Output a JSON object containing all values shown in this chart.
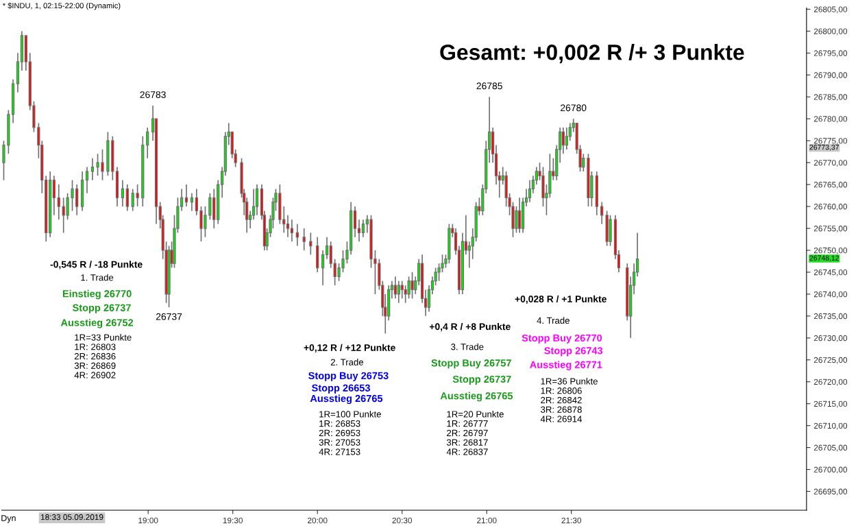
{
  "chart_data": {
    "type": "candlestick",
    "title": "* $INDU, 1, 02:15-22:00 (Dynamic)",
    "subtitle": "Gesamt: +0,002 R /+ 3 Punkte",
    "x": [
      18.147,
      18.175,
      18.202,
      18.23,
      18.254,
      18.278,
      18.302,
      18.325,
      18.353,
      18.373,
      18.397,
      18.421,
      18.444,
      18.472,
      18.5,
      18.524,
      18.552,
      18.579,
      18.611,
      18.639,
      18.671,
      18.702,
      18.73,
      18.762,
      18.79,
      18.817,
      18.849,
      18.877,
      18.909,
      18.937,
      18.968,
      18.996,
      19.028,
      19.048,
      19.071,
      19.087,
      19.107,
      19.123,
      19.139,
      19.155,
      19.175,
      19.198,
      19.226,
      19.258,
      19.286,
      19.313,
      19.337,
      19.365,
      19.389,
      19.413,
      19.437,
      19.456,
      19.476,
      19.496,
      19.516,
      19.552,
      19.567,
      19.583,
      19.603,
      19.623,
      19.643,
      19.671,
      19.687,
      19.702,
      19.722,
      19.738,
      19.754,
      19.778,
      19.802,
      19.825,
      19.849,
      19.881,
      19.921,
      19.96,
      20.0,
      20.032,
      20.056,
      20.079,
      20.103,
      20.127,
      20.151,
      20.175,
      20.198,
      20.222,
      20.246,
      20.27,
      20.294,
      20.317,
      20.341,
      20.365,
      20.385,
      20.401,
      20.421,
      20.44,
      20.46,
      20.48,
      20.5,
      20.52,
      20.54,
      20.56,
      20.579,
      20.599,
      20.619,
      20.639,
      20.659,
      20.679,
      20.698,
      20.718,
      20.738,
      20.758,
      20.778,
      20.798,
      20.817,
      20.837,
      20.857,
      20.877,
      20.897,
      20.917,
      20.937,
      20.956,
      20.976,
      20.996,
      21.016,
      21.036,
      21.056,
      21.075,
      21.095,
      21.115,
      21.135,
      21.155,
      21.175,
      21.194,
      21.214,
      21.234,
      21.254,
      21.274,
      21.294,
      21.313,
      21.333,
      21.353,
      21.373,
      21.393,
      21.413,
      21.433,
      21.452,
      21.472,
      21.492,
      21.512,
      21.532,
      21.552,
      21.571,
      21.6,
      21.62,
      21.65,
      21.68,
      21.71,
      21.73,
      21.76,
      21.78,
      21.83,
      21.85,
      21.87,
      21.89
    ],
    "ohlc": [
      [
        26770,
        26775,
        26766,
        26774
      ],
      [
        26774,
        26782,
        26772,
        26781
      ],
      [
        26781,
        26789,
        26779,
        26788
      ],
      [
        26788,
        26795,
        26786,
        26793
      ],
      [
        26793,
        26800,
        26791,
        26799
      ],
      [
        26799,
        26799,
        26791,
        26793
      ],
      [
        26793,
        26795,
        26782,
        26783
      ],
      [
        26783,
        26784,
        26777,
        26778
      ],
      [
        26778,
        26779,
        26771,
        26774
      ],
      [
        26774,
        26775,
        26763,
        26766
      ],
      [
        26766,
        26767,
        26752,
        26754
      ],
      [
        26754,
        26768,
        26753,
        26766
      ],
      [
        26766,
        26767,
        26758,
        26762
      ],
      [
        26762,
        26765,
        26757,
        26760
      ],
      [
        26760,
        26762,
        26754,
        26758
      ],
      [
        26758,
        26763,
        26757,
        26762
      ],
      [
        26762,
        26766,
        26759,
        26764
      ],
      [
        26764,
        26765,
        26758,
        26760
      ],
      [
        26760,
        26768,
        26759,
        26766
      ],
      [
        26766,
        26769,
        26763,
        26768
      ],
      [
        26768,
        26771,
        26766,
        26769
      ],
      [
        26769,
        26772,
        26767,
        26770
      ],
      [
        26770,
        26773,
        26766,
        26768
      ],
      [
        26768,
        26777,
        26767,
        26775
      ],
      [
        26775,
        26776,
        26766,
        26768
      ],
      [
        26768,
        26769,
        26760,
        26762
      ],
      [
        26762,
        26766,
        26760,
        26764
      ],
      [
        26764,
        26765,
        26759,
        26760
      ],
      [
        26760,
        26764,
        26759,
        26763
      ],
      [
        26763,
        26765,
        26760,
        26762
      ],
      [
        26762,
        26776,
        26760,
        26774
      ],
      [
        26774,
        26778,
        26771,
        26777
      ],
      [
        26777,
        26783,
        26775,
        26780
      ],
      [
        26780,
        26780,
        26756,
        26760
      ],
      [
        26760,
        26761,
        26755,
        26757
      ],
      [
        26757,
        26758,
        26748,
        26750
      ],
      [
        26750,
        26752,
        26738,
        26740
      ],
      [
        26740,
        26751,
        26737,
        26750
      ],
      [
        26750,
        26752,
        26746,
        26747
      ],
      [
        26747,
        26758,
        26746,
        26755
      ],
      [
        26755,
        26762,
        26754,
        26760
      ],
      [
        26760,
        26764,
        26759,
        26762
      ],
      [
        26762,
        26765,
        26760,
        26761
      ],
      [
        26761,
        26763,
        26759,
        26762
      ],
      [
        26762,
        26764,
        26758,
        26759
      ],
      [
        26759,
        26760,
        26752,
        26755
      ],
      [
        26755,
        26760,
        26753,
        26758
      ],
      [
        26758,
        26763,
        26757,
        26762
      ],
      [
        26762,
        26764,
        26755,
        26757
      ],
      [
        26757,
        26766,
        26756,
        26765
      ],
      [
        26765,
        26769,
        26762,
        26768
      ],
      [
        26768,
        26777,
        26767,
        26776
      ],
      [
        26776,
        26779,
        26774,
        26777
      ],
      [
        26777,
        26777,
        26771,
        26772
      ],
      [
        26772,
        26773,
        26769,
        26770
      ],
      [
        26770,
        26771,
        26762,
        26763
      ],
      [
        26763,
        26764,
        26758,
        26761
      ],
      [
        26761,
        26762,
        26754,
        26757
      ],
      [
        26757,
        26759,
        26755,
        26758
      ],
      [
        26758,
        26764,
        26757,
        26760
      ],
      [
        26760,
        26765,
        26758,
        26764
      ],
      [
        26764,
        26765,
        26757,
        26758
      ],
      [
        26758,
        26759,
        26750,
        26751
      ],
      [
        26751,
        26755,
        26750,
        26754
      ],
      [
        26754,
        26758,
        26753,
        26757
      ],
      [
        26757,
        26762,
        26755,
        26761
      ],
      [
        26761,
        26764,
        26759,
        26763
      ],
      [
        26763,
        26765,
        26756,
        26757
      ],
      [
        26757,
        26760,
        26754,
        26756
      ],
      [
        26756,
        26758,
        26753,
        26755
      ],
      [
        26755,
        26757,
        26752,
        26754
      ],
      [
        26754,
        26756,
        26751,
        26753
      ],
      [
        26753,
        26755,
        26750,
        26752
      ],
      [
        26752,
        26754,
        26749,
        26751
      ],
      [
        26751,
        26753,
        26745,
        26746
      ],
      [
        26746,
        26750,
        26742,
        26749
      ],
      [
        26749,
        26753,
        26748,
        26751
      ],
      [
        26751,
        26752,
        26746,
        26747
      ],
      [
        26747,
        26748,
        26742,
        26744
      ],
      [
        26744,
        26747,
        26743,
        26746
      ],
      [
        26746,
        26750,
        26745,
        26748
      ],
      [
        26748,
        26752,
        26747,
        26750
      ],
      [
        26750,
        26761,
        26749,
        26759
      ],
      [
        26759,
        26760,
        26753,
        26755
      ],
      [
        26755,
        26757,
        26752,
        26754
      ],
      [
        26754,
        26757,
        26753,
        26756
      ],
      [
        26756,
        26758,
        26754,
        26757
      ],
      [
        26757,
        26758,
        26746,
        26748
      ],
      [
        26748,
        26750,
        26740,
        26747
      ],
      [
        26747,
        26748,
        26741,
        26742
      ],
      [
        26742,
        26743,
        26735,
        26737
      ],
      [
        26737,
        26740,
        26731,
        26735
      ],
      [
        26735,
        26742,
        26734,
        26741
      ],
      [
        26741,
        26743,
        26739,
        26742
      ],
      [
        26742,
        26744,
        26739,
        26740
      ],
      [
        26740,
        26743,
        26738,
        26742
      ],
      [
        26742,
        26743,
        26739,
        26741
      ],
      [
        26741,
        26742,
        26738,
        26740
      ],
      [
        26740,
        26744,
        26739,
        26743
      ],
      [
        26743,
        26745,
        26739,
        26741
      ],
      [
        26741,
        26744,
        26740,
        26743
      ],
      [
        26743,
        26748,
        26742,
        26747
      ],
      [
        26747,
        26749,
        26738,
        26739
      ],
      [
        26739,
        26741,
        26735,
        26737
      ],
      [
        26737,
        26742,
        26736,
        26741
      ],
      [
        26741,
        26744,
        26740,
        26743
      ],
      [
        26743,
        26746,
        26742,
        26745
      ],
      [
        26745,
        26747,
        26743,
        26746
      ],
      [
        26746,
        26749,
        26745,
        26747
      ],
      [
        26747,
        26749,
        26746,
        26748
      ],
      [
        26748,
        26756,
        26747,
        26755
      ],
      [
        26755,
        26756,
        26753,
        26754
      ],
      [
        26754,
        26755,
        26749,
        26750
      ],
      [
        26750,
        26751,
        26740,
        26741
      ],
      [
        26741,
        26754,
        26740,
        26752
      ],
      [
        26752,
        26758,
        26749,
        26750
      ],
      [
        26750,
        26752,
        26746,
        26751
      ],
      [
        26751,
        26755,
        26748,
        26753
      ],
      [
        26753,
        26761,
        26752,
        26760
      ],
      [
        26760,
        26762,
        26758,
        26759
      ],
      [
        26759,
        26765,
        26758,
        26764
      ],
      [
        26764,
        26775,
        26763,
        26773
      ],
      [
        26773,
        26785,
        26770,
        26777
      ],
      [
        26777,
        26778,
        26770,
        26772
      ],
      [
        26772,
        26774,
        26765,
        26767
      ],
      [
        26767,
        26768,
        26762,
        26766
      ],
      [
        26766,
        26769,
        26765,
        26767
      ],
      [
        26767,
        26768,
        26760,
        26762
      ],
      [
        26762,
        26763,
        26758,
        26760
      ],
      [
        26760,
        26761,
        26753,
        26755
      ],
      [
        26755,
        26760,
        26754,
        26759
      ],
      [
        26759,
        26762,
        26754,
        26755
      ],
      [
        26755,
        26762,
        26754,
        26761
      ],
      [
        26761,
        26764,
        26760,
        26762
      ],
      [
        26762,
        26766,
        26761,
        26764
      ],
      [
        26764,
        26767,
        26763,
        26766
      ],
      [
        26766,
        26769,
        26765,
        26768
      ],
      [
        26768,
        26770,
        26766,
        26767
      ],
      [
        26767,
        26769,
        26760,
        26762
      ],
      [
        26762,
        26765,
        26758,
        26763
      ],
      [
        26763,
        26772,
        26762,
        26768
      ],
      [
        26768,
        26771,
        26766,
        26767
      ],
      [
        26767,
        26774,
        26766,
        26773
      ],
      [
        26773,
        26778,
        26770,
        26777
      ],
      [
        26777,
        26778,
        26772,
        26774
      ],
      [
        26774,
        26778,
        26773,
        26776
      ],
      [
        26776,
        26779,
        26775,
        26778
      ],
      [
        26778,
        26780,
        26777,
        26779
      ],
      [
        26779,
        26779,
        26772,
        26773
      ],
      [
        26773,
        26774,
        26768,
        26769
      ],
      [
        26769,
        26772,
        26768,
        26771
      ],
      [
        26771,
        26772,
        26760,
        26762
      ],
      [
        26762,
        26768,
        26760,
        26767
      ],
      [
        26767,
        26768,
        26758,
        26760
      ],
      [
        26760,
        26761,
        26756,
        26758
      ],
      [
        26758,
        26759,
        26751,
        26752
      ],
      [
        26752,
        26758,
        26751,
        26757
      ],
      [
        26757,
        26758,
        26748,
        26749
      ],
      [
        26749,
        26750,
        26745,
        26746
      ],
      [
        26746,
        26747,
        26734,
        26735
      ],
      [
        26735,
        26744,
        26730,
        26742
      ],
      [
        26742,
        26747,
        26740,
        26745
      ],
      [
        26745,
        26754,
        26744,
        26748
      ]
    ],
    "colors": [
      "#00ee00",
      "#00ee00",
      "#00ee00",
      "#00ee00",
      "#00ee00",
      "#ff0000",
      "#ff0000",
      "#ff0000",
      "#ff0000",
      "#ff0000",
      "#ff0000",
      "#00ee00",
      "#ff0000",
      "#ff0000",
      "#ff0000",
      "#00ee00",
      "#00ee00",
      "#ff0000",
      "#00ee00",
      "#00ee00",
      "#00ee00",
      "#00ee00",
      "#ff0000",
      "#00ee00",
      "#ff0000",
      "#ff0000",
      "#00ee00",
      "#ff0000",
      "#00ee00",
      "#ff0000",
      "#00ee00",
      "#00ee00",
      "#00ee00",
      "#ff0000",
      "#ff0000",
      "#ff0000",
      "#ff0000",
      "#00ee00",
      "#ff0000",
      "#00ee00",
      "#00ee00",
      "#00ee00",
      "#ff0000",
      "#00ee00",
      "#ff0000",
      "#ff0000",
      "#00ee00",
      "#00ee00",
      "#ff0000",
      "#00ee00",
      "#00ee00",
      "#00ee00",
      "#00ee00",
      "#ff0000",
      "#ff0000",
      "#ff0000",
      "#ff0000",
      "#ff0000",
      "#00ee00",
      "#00ee00",
      "#00ee00",
      "#ff0000",
      "#ff0000",
      "#00ee00",
      "#00ee00",
      "#00ee00",
      "#00ee00",
      "#ff0000",
      "#ff0000",
      "#ff0000",
      "#ff0000",
      "#ff0000",
      "#ff0000",
      "#ff0000",
      "#ff0000",
      "#00ee00",
      "#00ee00",
      "#ff0000",
      "#ff0000",
      "#00ee00",
      "#00ee00",
      "#00ee00",
      "#00ee00",
      "#ff0000",
      "#ff0000",
      "#00ee00",
      "#00ee00",
      "#ff0000",
      "#ff0000",
      "#ff0000",
      "#ff0000",
      "#ff0000",
      "#00ee00",
      "#00ee00",
      "#ff0000",
      "#00ee00",
      "#ff0000",
      "#ff0000",
      "#00ee00",
      "#ff0000",
      "#00ee00",
      "#00ee00",
      "#ff0000",
      "#ff0000",
      "#00ee00",
      "#00ee00",
      "#00ee00",
      "#00ee00",
      "#00ee00",
      "#00ee00",
      "#00ee00",
      "#ff0000",
      "#ff0000",
      "#ff0000",
      "#00ee00",
      "#ff0000",
      "#00ee00",
      "#00ee00",
      "#00ee00",
      "#ff0000",
      "#00ee00",
      "#00ee00",
      "#00ee00",
      "#ff0000",
      "#ff0000",
      "#ff0000",
      "#00ee00",
      "#ff0000",
      "#ff0000",
      "#ff0000",
      "#00ee00",
      "#ff0000",
      "#00ee00",
      "#00ee00",
      "#00ee00",
      "#00ee00",
      "#00ee00",
      "#ff0000",
      "#ff0000",
      "#00ee00",
      "#00ee00",
      "#ff0000",
      "#00ee00",
      "#00ee00",
      "#ff0000",
      "#00ee00",
      "#00ee00",
      "#00ee00",
      "#ff0000",
      "#ff0000",
      "#00ee00",
      "#ff0000",
      "#00ee00",
      "#ff0000",
      "#ff0000",
      "#ff0000",
      "#00ee00",
      "#ff0000",
      "#ff0000",
      "#ff0000",
      "#00ee00",
      "#00ee00",
      "#00ee00"
    ],
    "xlim": [
      18.135,
      22.889
    ],
    "xticks": [
      {
        "value": 19,
        "label": "19:00"
      },
      {
        "value": 19.5,
        "label": "19:30"
      },
      {
        "value": 20,
        "label": "20:00"
      },
      {
        "value": 20.5,
        "label": "20:30"
      },
      {
        "value": 21,
        "label": "21:00"
      },
      {
        "value": 21.5,
        "label": "21:30"
      }
    ],
    "ylim": [
      26690.7,
      26805.3
    ],
    "yticks": [
      {
        "value": 26695,
        "label": "26695,00"
      },
      {
        "value": 26700,
        "label": "26700,00"
      },
      {
        "value": 26705,
        "label": "26705,00"
      },
      {
        "value": 26710,
        "label": "26710,00"
      },
      {
        "value": 26715,
        "label": "26715,00"
      },
      {
        "value": 26720,
        "label": "26720,00"
      },
      {
        "value": 26725,
        "label": "26725,00"
      },
      {
        "value": 26730,
        "label": "26730,00"
      },
      {
        "value": 26735,
        "label": "26735,00"
      },
      {
        "value": 26740,
        "label": "26740,00"
      },
      {
        "value": 26745,
        "label": "26745,00"
      },
      {
        "value": 26750,
        "label": "26750,00"
      },
      {
        "value": 26755,
        "label": "26755,00"
      },
      {
        "value": 26760,
        "label": "26760,00"
      },
      {
        "value": 26765,
        "label": "26765,00"
      },
      {
        "value": 26770,
        "label": "26770,00"
      },
      {
        "value": 26775,
        "label": "26775,00"
      },
      {
        "value": 26780,
        "label": "26780,00"
      },
      {
        "value": 26785,
        "label": "26785,00"
      },
      {
        "value": 26790,
        "label": "26790,00"
      },
      {
        "value": 26795,
        "label": "26795,00"
      },
      {
        "value": 26800,
        "label": "26800,00"
      },
      {
        "value": 26805,
        "label": "26805,00"
      }
    ],
    "grid": false,
    "annotations": [
      {
        "text": "26783",
        "x": 19.028,
        "y": 26783
      },
      {
        "text": "26737",
        "x": 19.123,
        "y": 26737
      },
      {
        "text": "26785",
        "x": 21.016,
        "y": 26785
      },
      {
        "text": "26780",
        "x": 21.512,
        "y": 26780
      },
      "-0,545 R / -18 Punkte",
      "1. Trade",
      "Einstieg 26770",
      "Stopp 26737",
      "Ausstieg 26752",
      "1R=33 Punkte\n1R: 26803\n2R: 26836\n3R: 26869\n4R: 26902",
      "+0,12 R / +12 Punkte",
      "2. Trade",
      "Stopp Buy 26753",
      "Stopp 26653",
      "Ausstieg 26765",
      "1R=100 Punkte\n1R: 26853\n2R: 26953\n3R: 27053\n4R: 27153",
      "+0,4 R / +8 Punkte",
      "3. Trade",
      "Stopp Buy 26757",
      "Stopp 26737",
      "Ausstieg 26765",
      "1R=20 Punkte\n1R: 26777\n2R: 26797\n3R: 26817\n4R: 26837",
      "+0,028 R / +1 Punkte",
      "4. Trade",
      "Stopp Buy 26770",
      "Stopp 26743",
      "Ausstieg 26771",
      "1R=36 Punkte\n1R: 26806\n2R: 26842\n3R: 26878\n4R: 26914",
      "26773,37",
      "26748,12",
      "18:33 05.09.2019",
      "Dyn"
    ]
  }
}
